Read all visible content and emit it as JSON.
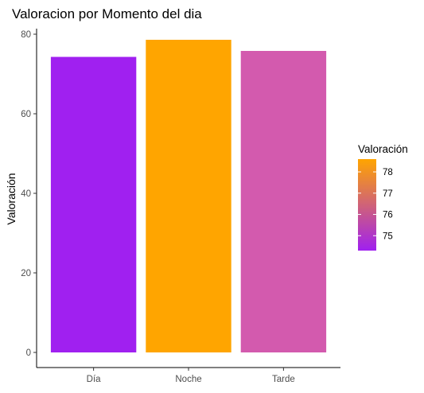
{
  "chart_data": {
    "type": "bar",
    "title": "Valoracion por Momento del dia",
    "xlabel": "",
    "ylabel": "Valoración",
    "categories": [
      "Día",
      "Noche",
      "Tarde"
    ],
    "values": [
      74.3,
      78.6,
      75.8
    ],
    "bar_colors": [
      "#A020F0",
      "#FFA500",
      "#D35AAE"
    ],
    "ylim": [
      0,
      80
    ],
    "yticks": [
      0,
      20,
      40,
      60,
      80
    ],
    "grid": false,
    "legend": {
      "title": "Valoración",
      "placement": "right",
      "type": "colorbar",
      "range": [
        74.3,
        78.6
      ],
      "low_color": "#A020F0",
      "high_color": "#FFA500",
      "ticks": [
        75,
        76,
        77,
        78
      ]
    }
  }
}
